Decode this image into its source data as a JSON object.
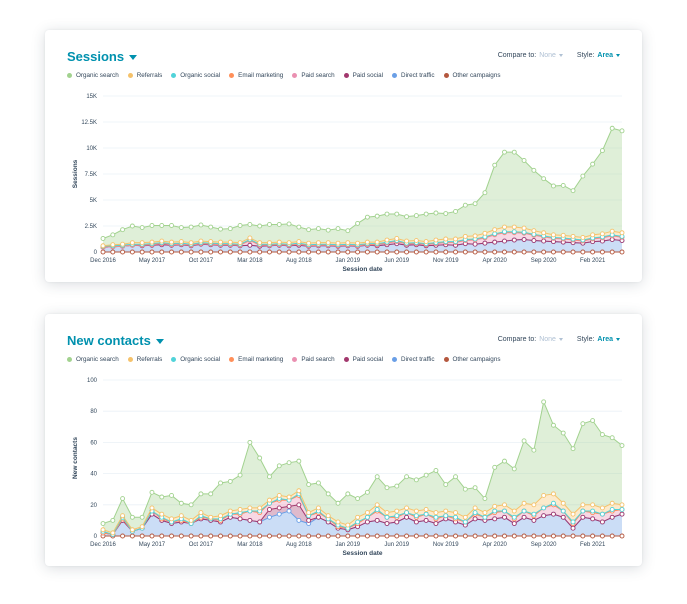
{
  "ui": {
    "compare_label": "Compare to:",
    "compare_value": "None",
    "style_label": "Style:",
    "style_value": "Area"
  },
  "colors": {
    "Organic search": "#a2d28f",
    "Referrals": "#f5c26b",
    "Organic social": "#51d3d9",
    "Email marketing": "#ff8f59",
    "Paid search": "#ea90b1",
    "Paid social": "#a2386d",
    "Direct traffic": "#6a9fe6",
    "Other campaigns": "#b4573e"
  },
  "chart_data": [
    {
      "type": "area",
      "title": "Sessions",
      "xlabel": "Session date",
      "ylabel": "Sessions",
      "ylim": [
        0,
        15000
      ],
      "yticks": [
        "0",
        "2.5K",
        "5K",
        "7.5K",
        "10K",
        "12.5K",
        "15K"
      ],
      "ytick_values": [
        0,
        2500,
        5000,
        7500,
        10000,
        12500,
        15000
      ],
      "xticks": [
        "Dec 2016",
        "May 2017",
        "Oct 2017",
        "Mar 2018",
        "Aug 2018",
        "Jan 2019",
        "Jun 2019",
        "Nov 2019",
        "Apr 2020",
        "Sep 2020",
        "Feb 2021"
      ],
      "xtick_index": [
        0,
        5,
        10,
        15,
        20,
        25,
        30,
        35,
        40,
        45,
        50
      ],
      "grid": true,
      "legend_position": "top-left",
      "x": [
        "Dec 2016",
        "Jan 2017",
        "Feb 2017",
        "Mar 2017",
        "Apr 2017",
        "May 2017",
        "Jun 2017",
        "Jul 2017",
        "Aug 2017",
        "Sep 2017",
        "Oct 2017",
        "Nov 2017",
        "Dec 2017",
        "Jan 2018",
        "Feb 2018",
        "Mar 2018",
        "Apr 2018",
        "May 2018",
        "Jun 2018",
        "Jul 2018",
        "Aug 2018",
        "Sep 2018",
        "Oct 2018",
        "Nov 2018",
        "Dec 2018",
        "Jan 2019",
        "Feb 2019",
        "Mar 2019",
        "Apr 2019",
        "May 2019",
        "Jun 2019",
        "Jul 2019",
        "Aug 2019",
        "Sep 2019",
        "Oct 2019",
        "Nov 2019",
        "Dec 2019",
        "Jan 2020",
        "Feb 2020",
        "Mar 2020",
        "Apr 2020",
        "May 2020",
        "Jun 2020",
        "Jul 2020",
        "Aug 2020",
        "Sep 2020",
        "Oct 2020",
        "Nov 2020",
        "Dec 2020",
        "Jan 2021",
        "Feb 2021",
        "Mar 2021",
        "Apr 2021",
        "May 2021"
      ],
      "series": [
        {
          "name": "Other campaigns",
          "values": [
            0,
            0,
            0,
            0,
            0,
            0,
            0,
            0,
            0,
            0,
            0,
            0,
            0,
            0,
            0,
            0,
            0,
            0,
            0,
            0,
            0,
            0,
            0,
            0,
            0,
            0,
            0,
            0,
            0,
            0,
            0,
            0,
            0,
            0,
            0,
            0,
            0,
            0,
            0,
            0,
            0,
            0,
            0,
            0,
            0,
            0,
            0,
            0,
            0,
            0,
            0,
            0,
            0,
            0
          ]
        },
        {
          "name": "Direct traffic",
          "values": [
            450,
            500,
            550,
            650,
            600,
            650,
            700,
            650,
            700,
            600,
            750,
            700,
            650,
            650,
            600,
            650,
            550,
            600,
            650,
            600,
            650,
            550,
            600,
            600,
            550,
            600,
            550,
            650,
            600,
            700,
            800,
            650,
            700,
            600,
            650,
            700,
            650,
            800,
            750,
            850,
            950,
            1050,
            1150,
            1200,
            1100,
            1050,
            1000,
            950,
            900,
            850,
            1000,
            1050,
            1200,
            1100
          ]
        },
        {
          "name": "Paid social",
          "values": [
            0,
            0,
            0,
            0,
            0,
            0,
            0,
            0,
            0,
            0,
            0,
            0,
            0,
            0,
            0,
            0,
            0,
            0,
            0,
            0,
            0,
            0,
            0,
            0,
            0,
            0,
            0,
            0,
            0,
            0,
            0,
            0,
            0,
            0,
            0,
            0,
            0,
            0,
            0,
            0,
            0,
            0,
            0,
            0,
            0,
            0,
            0,
            0,
            0,
            0,
            0,
            0,
            0,
            0
          ]
        },
        {
          "name": "Paid search",
          "values": [
            0,
            0,
            0,
            0,
            50,
            50,
            100,
            50,
            50,
            50,
            50,
            50,
            50,
            50,
            50,
            450,
            100,
            50,
            50,
            50,
            100,
            50,
            50,
            50,
            50,
            50,
            50,
            50,
            100,
            150,
            200,
            100,
            100,
            100,
            150,
            200,
            250,
            300,
            400,
            500,
            700,
            800,
            700,
            600,
            500,
            400,
            300,
            300,
            250,
            200,
            250,
            300,
            350,
            300
          ]
        },
        {
          "name": "Email marketing",
          "values": [
            50,
            50,
            50,
            50,
            50,
            50,
            50,
            50,
            50,
            50,
            50,
            50,
            50,
            50,
            50,
            50,
            50,
            50,
            50,
            50,
            50,
            50,
            50,
            50,
            50,
            50,
            50,
            50,
            50,
            50,
            50,
            50,
            50,
            50,
            50,
            50,
            50,
            50,
            50,
            50,
            50,
            50,
            50,
            50,
            50,
            50,
            50,
            50,
            50,
            50,
            50,
            50,
            50,
            50
          ]
        },
        {
          "name": "Organic social",
          "values": [
            50,
            50,
            50,
            50,
            50,
            50,
            50,
            50,
            50,
            50,
            50,
            50,
            50,
            50,
            50,
            50,
            50,
            50,
            50,
            50,
            50,
            50,
            50,
            50,
            50,
            50,
            50,
            50,
            50,
            50,
            50,
            50,
            50,
            50,
            50,
            50,
            50,
            50,
            50,
            50,
            50,
            50,
            50,
            50,
            50,
            50,
            50,
            50,
            50,
            50,
            50,
            50,
            50,
            50
          ]
        },
        {
          "name": "Referrals",
          "values": [
            50,
            100,
            100,
            150,
            150,
            150,
            150,
            150,
            150,
            150,
            150,
            150,
            150,
            150,
            150,
            150,
            150,
            150,
            150,
            150,
            150,
            150,
            150,
            150,
            150,
            150,
            150,
            150,
            150,
            200,
            200,
            200,
            200,
            200,
            250,
            250,
            250,
            300,
            300,
            350,
            400,
            450,
            450,
            400,
            350,
            300,
            250,
            250,
            250,
            250,
            300,
            300,
            350,
            350
          ]
        },
        {
          "name": "Organic search",
          "values": [
            700,
            950,
            1400,
            1600,
            1450,
            1600,
            1500,
            1600,
            1350,
            1500,
            1550,
            1400,
            1250,
            1300,
            1650,
            1300,
            1600,
            1750,
            1700,
            1800,
            1400,
            1300,
            1350,
            1200,
            1400,
            1150,
            1900,
            2400,
            2500,
            2500,
            2350,
            2350,
            2400,
            2650,
            2600,
            2450,
            2650,
            3000,
            3100,
            3900,
            6200,
            7200,
            7200,
            6500,
            5800,
            5200,
            4700,
            4800,
            4400,
            5900,
            6800,
            8000,
            9900,
            9800
          ]
        }
      ]
    },
    {
      "type": "area",
      "title": "New contacts",
      "xlabel": "Session date",
      "ylabel": "New contacts",
      "ylim": [
        0,
        100
      ],
      "yticks": [
        "0",
        "20",
        "40",
        "60",
        "80",
        "100"
      ],
      "ytick_values": [
        0,
        20,
        40,
        60,
        80,
        100
      ],
      "xticks": [
        "Dec 2016",
        "May 2017",
        "Oct 2017",
        "Mar 2018",
        "Aug 2018",
        "Jan 2019",
        "Jun 2019",
        "Nov 2019",
        "Apr 2020",
        "Sep 2020",
        "Feb 2021"
      ],
      "xtick_index": [
        0,
        5,
        10,
        15,
        20,
        25,
        30,
        35,
        40,
        45,
        50
      ],
      "grid": true,
      "legend_position": "top-left",
      "x": [
        "Dec 2016",
        "Jan 2017",
        "Feb 2017",
        "Mar 2017",
        "Apr 2017",
        "May 2017",
        "Jun 2017",
        "Jul 2017",
        "Aug 2017",
        "Sep 2017",
        "Oct 2017",
        "Nov 2017",
        "Dec 2017",
        "Jan 2018",
        "Feb 2018",
        "Mar 2018",
        "Apr 2018",
        "May 2018",
        "Jun 2018",
        "Jul 2018",
        "Aug 2018",
        "Sep 2018",
        "Oct 2018",
        "Nov 2018",
        "Dec 2018",
        "Jan 2019",
        "Feb 2019",
        "Mar 2019",
        "Apr 2019",
        "May 2019",
        "Jun 2019",
        "Jul 2019",
        "Aug 2019",
        "Sep 2019",
        "Oct 2019",
        "Nov 2019",
        "Dec 2019",
        "Jan 2020",
        "Feb 2020",
        "Mar 2020",
        "Apr 2020",
        "May 2020",
        "Jun 2020",
        "Jul 2020",
        "Aug 2020",
        "Sep 2020",
        "Oct 2020",
        "Nov 2020",
        "Dec 2020",
        "Jan 2021",
        "Feb 2021",
        "Mar 2021",
        "Apr 2021",
        "May 2021"
      ],
      "series": [
        {
          "name": "Other campaigns",
          "values": [
            0,
            0,
            0,
            0,
            0,
            0,
            0,
            0,
            0,
            0,
            0,
            0,
            0,
            0,
            0,
            0,
            0,
            0,
            0,
            0,
            0,
            0,
            0,
            0,
            0,
            0,
            0,
            0,
            0,
            0,
            0,
            0,
            0,
            0,
            0,
            0,
            0,
            0,
            0,
            0,
            0,
            0,
            0,
            0,
            0,
            0,
            0,
            0,
            0,
            0,
            0,
            0,
            0,
            0
          ]
        },
        {
          "name": "Direct traffic",
          "values": [
            2,
            1,
            10,
            3,
            5,
            14,
            10,
            8,
            9,
            8,
            11,
            10,
            9,
            12,
            11,
            10,
            9,
            12,
            14,
            16,
            10,
            8,
            12,
            9,
            5,
            4,
            6,
            9,
            10,
            8,
            9,
            12,
            9,
            10,
            8,
            11,
            9,
            7,
            11,
            10,
            11,
            12,
            8,
            12,
            10,
            13,
            14,
            12,
            5,
            12,
            11,
            9,
            12,
            14
          ]
        },
        {
          "name": "Paid social",
          "values": [
            0,
            0,
            0,
            0,
            0,
            0,
            0,
            0,
            0,
            0,
            0,
            0,
            0,
            0,
            0,
            0,
            0,
            5,
            4,
            3,
            10,
            2,
            0,
            0,
            0,
            0,
            0,
            0,
            0,
            0,
            0,
            0,
            0,
            0,
            0,
            0,
            0,
            0,
            0,
            0,
            0,
            0,
            0,
            0,
            0,
            0,
            0,
            0,
            0,
            0,
            0,
            0,
            0,
            0
          ]
        },
        {
          "name": "Paid search",
          "values": [
            0,
            0,
            1,
            0,
            0,
            2,
            1,
            1,
            1,
            0,
            1,
            1,
            1,
            2,
            3,
            6,
            6,
            4,
            5,
            4,
            6,
            3,
            3,
            2,
            1,
            1,
            2,
            3,
            6,
            4,
            3,
            3,
            3,
            4,
            3,
            2,
            2,
            2,
            3,
            2,
            4,
            4,
            3,
            4,
            3,
            5,
            6,
            4,
            3,
            4,
            4,
            5,
            4,
            3
          ]
        },
        {
          "name": "Email marketing",
          "values": [
            0,
            0,
            0,
            0,
            0,
            0,
            0,
            0,
            0,
            0,
            0,
            0,
            0,
            0,
            0,
            0,
            0,
            0,
            0,
            0,
            0,
            0,
            0,
            0,
            0,
            0,
            0,
            0,
            0,
            0,
            0,
            0,
            0,
            0,
            0,
            0,
            0,
            0,
            0,
            0,
            0,
            0,
            0,
            0,
            0,
            0,
            0,
            0,
            0,
            0,
            0,
            0,
            0,
            0
          ]
        },
        {
          "name": "Organic social",
          "values": [
            1,
            0,
            1,
            0,
            0,
            0,
            1,
            0,
            1,
            0,
            1,
            0,
            1,
            0,
            1,
            0,
            1,
            0,
            1,
            0,
            1,
            0,
            1,
            0,
            1,
            0,
            1,
            0,
            1,
            0,
            1,
            0,
            1,
            0,
            1,
            0,
            1,
            0,
            1,
            0,
            1,
            0,
            1,
            0,
            1,
            0,
            1,
            0,
            1,
            0,
            1,
            0,
            1,
            0
          ]
        },
        {
          "name": "Referrals",
          "values": [
            1,
            1,
            1,
            1,
            1,
            2,
            2,
            2,
            2,
            2,
            2,
            1,
            2,
            2,
            2,
            2,
            2,
            2,
            2,
            2,
            2,
            2,
            2,
            2,
            2,
            2,
            3,
            3,
            3,
            3,
            3,
            3,
            3,
            3,
            3,
            3,
            3,
            3,
            3,
            3,
            3,
            4,
            4,
            5,
            6,
            8,
            6,
            5,
            5,
            4,
            4,
            4,
            4,
            3
          ]
        },
        {
          "name": "Organic search",
          "values": [
            4,
            8,
            11,
            8,
            6,
            10,
            11,
            15,
            8,
            10,
            12,
            15,
            21,
            19,
            22,
            42,
            32,
            15,
            19,
            22,
            19,
            18,
            16,
            14,
            12,
            20,
            12,
            13,
            18,
            16,
            16,
            20,
            20,
            22,
            27,
            17,
            23,
            18,
            13,
            9,
            25,
            28,
            27,
            40,
            35,
            60,
            44,
            45,
            42,
            52,
            54,
            47,
            42,
            38
          ]
        }
      ]
    }
  ]
}
